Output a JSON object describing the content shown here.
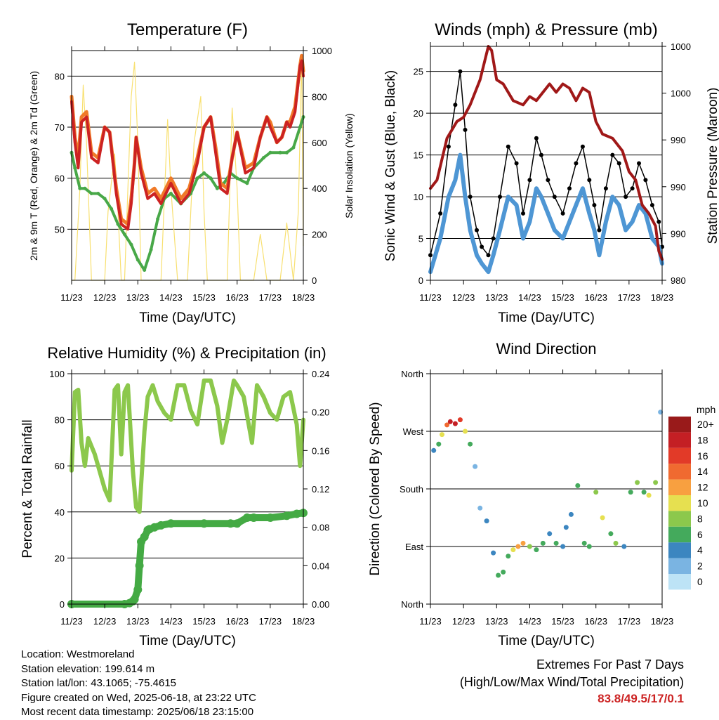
{
  "chart_data": [
    {
      "type": "line",
      "title": "Temperature (F)",
      "xlabel": "Time (Day/UTC)",
      "ylabel": "2m & 9m T (Red, Orange) & 2m Td (Green)",
      "ylabel_right": "Solar Insolation (Yellow)",
      "x_ticks": [
        "11/23",
        "12/23",
        "13/23",
        "14/23",
        "15/23",
        "16/23",
        "17/23",
        "18/23"
      ],
      "xlim": [
        11,
        18
      ],
      "ylim": [
        40,
        85
      ],
      "y_ticks": [
        50,
        60,
        70,
        80
      ],
      "ylim_right": [
        0,
        1000
      ],
      "y_ticks_right": [
        0,
        200,
        400,
        600,
        800,
        1000
      ],
      "grid": true,
      "series": [
        {
          "color": "#cc2222",
          "axis": "left",
          "x": [
            11.0,
            11.1,
            11.2,
            11.3,
            11.45,
            11.6,
            11.8,
            12.0,
            12.15,
            12.35,
            12.5,
            12.7,
            12.8,
            12.9,
            12.95,
            13.1,
            13.3,
            13.5,
            13.7,
            14.0,
            14.3,
            14.55,
            14.8,
            15.0,
            15.2,
            15.35,
            15.5,
            15.7,
            15.85,
            16.0,
            16.25,
            16.5,
            16.7,
            16.9,
            17.0,
            17.2,
            17.35,
            17.5,
            17.6,
            17.75,
            17.9,
            17.95,
            18.0
          ],
          "y": [
            75,
            67,
            62,
            71,
            72,
            64,
            63,
            70,
            69,
            57,
            51,
            50,
            55,
            63,
            68,
            61,
            56,
            57,
            55,
            59,
            55,
            57,
            63,
            70,
            72,
            65,
            58,
            57,
            64,
            69,
            61,
            62,
            68,
            72,
            70,
            67,
            68,
            71,
            70,
            73,
            82,
            83,
            80
          ]
        },
        {
          "color": "#f07a28",
          "axis": "left",
          "x": [
            11.0,
            11.1,
            11.2,
            11.3,
            11.45,
            11.6,
            11.8,
            12.0,
            12.15,
            12.35,
            12.5,
            12.7,
            12.8,
            12.9,
            12.95,
            13.1,
            13.3,
            13.5,
            13.7,
            14.0,
            14.3,
            14.55,
            14.8,
            15.0,
            15.2,
            15.35,
            15.5,
            15.7,
            15.85,
            16.0,
            16.25,
            16.5,
            16.7,
            16.9,
            17.0,
            17.2,
            17.35,
            17.5,
            17.6,
            17.75,
            17.9,
            17.95,
            18.0
          ],
          "y": [
            76,
            68,
            64,
            72,
            73,
            65,
            64,
            70,
            69,
            58,
            52,
            51,
            56,
            63,
            68,
            62,
            57,
            58,
            56,
            60,
            56,
            58,
            64,
            70,
            72,
            66,
            59,
            58,
            64,
            69,
            62,
            63,
            68,
            72,
            71,
            67,
            68,
            71,
            71,
            74,
            82,
            84,
            81
          ]
        },
        {
          "color": "#48a848",
          "axis": "left",
          "x": [
            11.0,
            11.1,
            11.25,
            11.4,
            11.6,
            11.8,
            12.0,
            12.2,
            12.4,
            12.6,
            12.8,
            13.0,
            13.2,
            13.4,
            13.6,
            13.8,
            14.0,
            14.3,
            14.6,
            14.8,
            15.0,
            15.2,
            15.4,
            15.6,
            15.8,
            16.0,
            16.3,
            16.5,
            16.8,
            17.0,
            17.3,
            17.5,
            17.7,
            17.9,
            18.0
          ],
          "y": [
            65,
            62,
            58,
            58,
            57,
            57,
            56,
            54,
            51,
            49,
            47,
            44,
            42,
            46,
            52,
            56,
            57,
            55,
            57,
            60,
            61,
            60,
            58,
            59,
            61,
            60,
            59,
            62,
            64,
            65,
            65,
            65,
            66,
            70,
            72
          ]
        },
        {
          "color": "#f8e070",
          "axis": "right",
          "x": [
            11.0,
            11.1,
            11.25,
            11.35,
            11.45,
            11.6,
            11.75,
            11.9,
            12.0,
            12.1,
            12.3,
            12.4,
            12.5,
            12.6,
            12.8,
            12.9,
            13.0,
            13.1,
            13.25,
            13.5,
            13.7,
            13.9,
            14.0,
            14.2,
            14.3,
            14.4,
            14.5,
            14.7,
            14.9,
            15.0,
            15.1,
            15.2,
            15.3,
            15.5,
            15.7,
            15.85,
            16.0,
            16.1,
            16.2,
            16.3,
            16.5,
            16.7,
            16.9,
            17.0,
            17.1,
            17.3,
            17.5,
            17.7,
            17.85,
            17.95,
            18.0
          ],
          "y": [
            0,
            0,
            400,
            850,
            600,
            0,
            0,
            0,
            0,
            300,
            550,
            300,
            0,
            0,
            800,
            950,
            600,
            0,
            0,
            0,
            0,
            700,
            400,
            0,
            0,
            0,
            0,
            600,
            800,
            300,
            0,
            0,
            0,
            0,
            0,
            750,
            400,
            0,
            0,
            0,
            0,
            200,
            0,
            0,
            0,
            0,
            250,
            0,
            300,
            980,
            150
          ]
        }
      ]
    },
    {
      "type": "scatter",
      "title": "Winds (mph) & Pressure (mb)",
      "xlabel": "Time (Day/UTC)",
      "ylabel": "Sonic Wind & Gust (Blue, Black)",
      "ylabel_right": "Station Pressure (Maroon)",
      "x_ticks": [
        "11/23",
        "12/23",
        "13/23",
        "14/23",
        "15/23",
        "16/23",
        "17/23",
        "18/23"
      ],
      "xlim": [
        11,
        18
      ],
      "ylim": [
        0,
        28
      ],
      "y_ticks": [
        0,
        5,
        10,
        15,
        20,
        25
      ],
      "y_ticks_right_labels": [
        "980",
        "990",
        "990",
        "990",
        "1000",
        "1000"
      ],
      "grid": true,
      "gust": {
        "color": "#000000",
        "x": [
          11.0,
          11.3,
          11.55,
          11.75,
          11.9,
          12.05,
          12.2,
          12.4,
          12.55,
          12.75,
          12.9,
          13.1,
          13.35,
          13.6,
          13.8,
          14.0,
          14.2,
          14.35,
          14.55,
          14.75,
          15.0,
          15.2,
          15.4,
          15.6,
          15.8,
          15.95,
          16.1,
          16.3,
          16.5,
          16.7,
          16.9,
          17.1,
          17.3,
          17.5,
          17.7,
          17.9,
          18.0
        ],
        "y": [
          3,
          8,
          16,
          21,
          25,
          18,
          10,
          6,
          4,
          3,
          5,
          10,
          16,
          14,
          8,
          12,
          17,
          15,
          12,
          10,
          8,
          11,
          14,
          16,
          12,
          9,
          6,
          11,
          15,
          14,
          10,
          11,
          14,
          12,
          9,
          7,
          4
        ]
      },
      "wind": {
        "color": "#4e96d4",
        "x": [
          11.0,
          11.3,
          11.55,
          11.75,
          11.9,
          12.05,
          12.2,
          12.4,
          12.55,
          12.75,
          12.9,
          13.1,
          13.35,
          13.6,
          13.8,
          14.0,
          14.2,
          14.35,
          14.55,
          14.75,
          15.0,
          15.2,
          15.4,
          15.6,
          15.8,
          15.95,
          16.1,
          16.3,
          16.5,
          16.7,
          16.9,
          17.1,
          17.3,
          17.5,
          17.7,
          17.9,
          18.0
        ],
        "y": [
          1,
          5,
          10,
          12,
          15,
          10,
          6,
          3,
          2,
          1,
          3,
          6,
          10,
          9,
          5,
          7,
          11,
          10,
          8,
          6,
          5,
          7,
          9,
          11,
          8,
          6,
          3,
          7,
          10,
          9,
          6,
          7,
          9,
          8,
          5,
          4,
          2
        ]
      },
      "pressure": {
        "color": "#a01818",
        "x": [
          11.0,
          11.2,
          11.5,
          11.8,
          12.0,
          12.2,
          12.5,
          12.75,
          12.85,
          13.0,
          13.2,
          13.5,
          13.8,
          14.0,
          14.2,
          14.4,
          14.6,
          14.8,
          15.0,
          15.2,
          15.4,
          15.6,
          15.8,
          16.0,
          16.2,
          16.5,
          16.8,
          17.0,
          17.2,
          17.4,
          17.6,
          17.8,
          17.9,
          18.0
        ],
        "y": [
          11,
          12,
          17,
          19,
          19.5,
          21,
          24,
          28,
          27.5,
          24,
          23.5,
          21.5,
          21,
          22,
          21.5,
          22.5,
          23.5,
          22.5,
          23.5,
          23,
          21.5,
          23,
          22.5,
          19,
          17.5,
          17,
          15.5,
          13,
          12,
          9,
          8,
          6.5,
          3.5,
          2.5
        ]
      }
    },
    {
      "type": "line",
      "title": "Relative Humidity (%) & Precipitation (in)",
      "xlabel": "Time (Day/UTC)",
      "ylabel": "Percent & Total Rainfall",
      "x_ticks": [
        "11/23",
        "12/23",
        "13/23",
        "14/23",
        "15/23",
        "16/23",
        "17/23",
        "18/23"
      ],
      "xlim": [
        11,
        18
      ],
      "ylim": [
        0,
        100
      ],
      "y_ticks": [
        0,
        20,
        40,
        60,
        80,
        100
      ],
      "ylim_right": [
        0,
        0.24
      ],
      "y_ticks_right": [
        "0.00",
        "0.04",
        "0.08",
        "0.12",
        "0.16",
        "0.20",
        "0.24"
      ],
      "grid": true,
      "series": [
        {
          "color": "#8cc84c",
          "axis": "left",
          "x": [
            11.0,
            11.1,
            11.2,
            11.3,
            11.4,
            11.5,
            11.7,
            11.9,
            12.0,
            12.15,
            12.3,
            12.4,
            12.5,
            12.6,
            12.7,
            12.85,
            12.95,
            13.05,
            13.2,
            13.3,
            13.45,
            13.6,
            13.8,
            14.0,
            14.2,
            14.4,
            14.6,
            14.8,
            15.0,
            15.2,
            15.4,
            15.55,
            15.7,
            15.9,
            16.0,
            16.2,
            16.45,
            16.6,
            16.8,
            17.0,
            17.2,
            17.4,
            17.6,
            17.8,
            17.9,
            18.0
          ],
          "y": [
            58,
            92,
            93,
            70,
            60,
            72,
            65,
            55,
            50,
            45,
            93,
            95,
            65,
            92,
            95,
            58,
            42,
            40,
            75,
            90,
            95,
            88,
            83,
            80,
            95,
            95,
            84,
            78,
            97,
            97,
            86,
            70,
            80,
            97,
            95,
            90,
            70,
            95,
            90,
            83,
            80,
            90,
            92,
            78,
            60,
            80
          ]
        },
        {
          "color": "#44aa44",
          "axis": "right",
          "x": [
            11.0,
            12.6,
            12.75,
            12.85,
            12.9,
            13.0,
            13.05,
            13.1,
            13.2,
            13.3,
            13.35,
            13.5,
            13.7,
            14.0,
            15.0,
            15.8,
            16.0,
            16.3,
            16.5,
            17.0,
            17.5,
            17.8,
            18.0
          ],
          "y": [
            0,
            0,
            0.001,
            0.003,
            0.005,
            0.015,
            0.04,
            0.065,
            0.07,
            0.077,
            0.078,
            0.08,
            0.082,
            0.084,
            0.084,
            0.084,
            0.084,
            0.09,
            0.09,
            0.09,
            0.092,
            0.094,
            0.095
          ]
        }
      ]
    },
    {
      "type": "scatter",
      "title": "Wind Direction",
      "xlabel": "Time (Day/UTC)",
      "ylabel": "Direction (Colored By Speed)",
      "x_ticks": [
        "11/23",
        "12/23",
        "13/23",
        "14/23",
        "15/23",
        "16/23",
        "17/23",
        "18/23"
      ],
      "xlim": [
        11,
        18
      ],
      "y_ticks": [
        "North",
        "East",
        "South",
        "West",
        "North"
      ],
      "ylim": [
        0,
        360
      ],
      "grid": true,
      "legend": {
        "title": "mph",
        "labels": [
          "20+",
          "18",
          "16",
          "14",
          "12",
          "10",
          "8",
          "6",
          "4",
          "2",
          "0"
        ],
        "colors": [
          "#991a1a",
          "#c41f24",
          "#e23a28",
          "#f06a30",
          "#f8a040",
          "#e6e050",
          "#8cc84c",
          "#44aa5c",
          "#3c86c0",
          "#7ab4e2",
          "#bde3f6"
        ]
      },
      "points": {
        "x": [
          11.1,
          11.25,
          11.35,
          11.5,
          11.6,
          11.75,
          11.9,
          12.05,
          12.2,
          12.35,
          12.5,
          12.7,
          12.9,
          13.05,
          13.2,
          13.35,
          13.5,
          13.65,
          13.8,
          14.0,
          14.2,
          14.4,
          14.6,
          14.8,
          15.0,
          15.1,
          15.25,
          15.45,
          15.65,
          15.8,
          16.0,
          16.2,
          16.45,
          16.6,
          16.85,
          17.05,
          17.25,
          17.45,
          17.6,
          17.8,
          17.95
        ],
        "y": [
          240,
          250,
          265,
          280,
          285,
          282,
          288,
          270,
          250,
          215,
          150,
          130,
          80,
          45,
          50,
          75,
          85,
          90,
          95,
          90,
          85,
          95,
          110,
          95,
          90,
          120,
          140,
          185,
          95,
          90,
          175,
          135,
          110,
          95,
          90,
          175,
          190,
          175,
          170,
          190,
          300
        ],
        "speed": [
          4,
          6,
          10,
          14,
          18,
          17,
          16,
          10,
          6,
          2,
          2,
          4,
          4,
          6,
          5,
          6,
          10,
          11,
          12,
          8,
          6,
          5,
          4,
          6,
          4,
          3,
          4,
          6,
          5,
          6,
          8,
          10,
          6,
          8,
          4,
          6,
          8,
          6,
          10,
          8,
          2
        ]
      }
    }
  ],
  "footer": {
    "location": "Location: Westmoreland",
    "elevation": "Station elevation: 199.614 m",
    "latlon": "Station lat/lon: 43.1065; -75.4615",
    "created": "Figure created on Wed, 2025-06-18, at 23:22 UTC",
    "recent": "Most recent data timestamp: 2025/06/18 23:15:00",
    "extremes_title": "Extremes For Past 7 Days",
    "extremes_desc": "(High/Low/Max Wind/Total Precipitation)",
    "extremes_values": "83.8/49.5/17/0.1"
  }
}
